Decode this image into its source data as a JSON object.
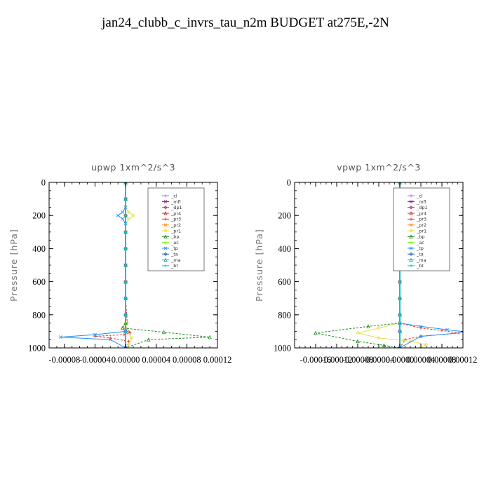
{
  "title": "jan24_clubb_c_invrs_tau_n2m  BUDGET at275E,-2N",
  "chart_data": [
    {
      "type": "line",
      "title": "upwp   1xm^2/s^3",
      "ylabel": "Pressure [hPa]",
      "xlim": [
        -0.0001,
        0.00012
      ],
      "ylim": [
        1000,
        0
      ],
      "xticks": [
        -8e-05,
        -4e-05,
        0.0,
        4e-05,
        8e-05,
        0.00012
      ],
      "xtick_labels": [
        "-0.00008",
        "-0.00004",
        "0.00000",
        "0.00004",
        "0.00008",
        "0.00012"
      ],
      "yticks": [
        0,
        200,
        400,
        600,
        800,
        1000
      ],
      "ytick_labels": [
        "0",
        "200",
        "400",
        "600",
        "800",
        "1000"
      ],
      "legend_position": "top-right",
      "series": [
        {
          "name": "_cl",
          "color": "#9370db",
          "x": [
            0,
            0,
            0,
            0,
            0,
            0,
            0,
            0,
            0,
            0,
            0
          ],
          "y": [
            0,
            100,
            200,
            300,
            400,
            500,
            600,
            700,
            800,
            900,
            1000
          ]
        },
        {
          "name": "_mfl",
          "color": "#8b1a8b",
          "x": [
            0,
            0,
            0,
            0,
            0,
            0,
            0,
            0,
            0,
            0,
            0
          ],
          "y": [
            0,
            100,
            200,
            300,
            400,
            500,
            600,
            700,
            800,
            900,
            1000
          ]
        },
        {
          "name": "_dp1",
          "color": "#b03060",
          "x": [
            0,
            0,
            0,
            0,
            0,
            0,
            0,
            0,
            0,
            0,
            0
          ],
          "y": [
            0,
            100,
            200,
            300,
            400,
            500,
            600,
            700,
            800,
            900,
            1000
          ]
        },
        {
          "name": "_pr4",
          "color": "#cd3333",
          "x": [
            0,
            0,
            0,
            0,
            0,
            0,
            0,
            0,
            0,
            0,
            0
          ],
          "y": [
            0,
            100,
            200,
            300,
            400,
            500,
            600,
            700,
            800,
            900,
            1000
          ]
        },
        {
          "name": "_pr3",
          "color": "#e03030",
          "x": [
            0,
            0,
            0,
            2e-06,
            0,
            4e-06,
            6e-06,
            -2e-06,
            -4e-05,
            -2e-05,
            4e-06,
            2e-06
          ],
          "y": [
            0,
            200,
            700,
            850,
            880,
            900,
            910,
            920,
            930,
            940,
            960,
            1000
          ]
        },
        {
          "name": "_pr2",
          "color": "#ff8c1a",
          "x": [
            0,
            0,
            0,
            0,
            0,
            0,
            0,
            0,
            0,
            0,
            0
          ],
          "y": [
            0,
            100,
            200,
            300,
            400,
            500,
            600,
            700,
            800,
            900,
            1000
          ]
        },
        {
          "name": "_pr1",
          "color": "#e8e040",
          "x": [
            0,
            0,
            4e-06,
            1e-05,
            4e-06,
            0,
            0,
            0,
            -4e-06,
            2e-06,
            8e-06,
            4e-06,
            2e-06
          ],
          "y": [
            0,
            150,
            180,
            200,
            220,
            250,
            700,
            850,
            880,
            900,
            940,
            980,
            1000
          ]
        },
        {
          "name": "_bp",
          "color": "#228b22",
          "x": [
            0,
            0,
            0,
            -4e-06,
            5e-05,
            0.00011,
            3e-05,
            0
          ],
          "y": [
            0,
            600,
            850,
            880,
            905,
            935,
            950,
            1000
          ]
        },
        {
          "name": "_ac",
          "color": "#7cfc00",
          "x": [
            0,
            0,
            0,
            0,
            0,
            0,
            0,
            0,
            0,
            0,
            0
          ],
          "y": [
            0,
            100,
            200,
            300,
            400,
            500,
            600,
            700,
            800,
            900,
            1000
          ]
        },
        {
          "name": "_tp",
          "color": "#1e90ff",
          "x": [
            0,
            0,
            -4e-06,
            -1e-05,
            -4e-06,
            0,
            0,
            0,
            -4e-05,
            -8.5e-05,
            -2e-05,
            0
          ],
          "y": [
            0,
            150,
            180,
            200,
            220,
            250,
            700,
            900,
            920,
            935,
            950,
            1000
          ]
        },
        {
          "name": "_ta",
          "color": "#1e5cc8",
          "x": [
            0,
            0,
            0,
            0,
            0,
            0,
            0,
            0,
            0,
            0,
            0
          ],
          "y": [
            0,
            100,
            200,
            300,
            400,
            500,
            600,
            700,
            800,
            900,
            1000
          ]
        },
        {
          "name": "_ma",
          "color": "#20b2aa",
          "x": [
            0,
            0,
            0,
            0,
            0,
            0,
            0,
            0,
            0,
            0,
            0
          ],
          "y": [
            0,
            100,
            200,
            300,
            400,
            500,
            600,
            700,
            800,
            900,
            1000
          ]
        },
        {
          "name": "_bt",
          "color": "#00ced1",
          "x": [
            0,
            0,
            0,
            0,
            0,
            0,
            0,
            0,
            0,
            0,
            0
          ],
          "y": [
            0,
            100,
            200,
            300,
            400,
            500,
            600,
            700,
            800,
            900,
            1000
          ]
        }
      ]
    },
    {
      "type": "line",
      "title": "vpwp   1xm^2/s^3",
      "ylabel": "Pressure [hPa]",
      "xlim": [
        -0.0002,
        0.00012
      ],
      "ylim": [
        1000,
        0
      ],
      "xticks": [
        -0.00016,
        -0.00012,
        -8e-05,
        -4e-05,
        0.0,
        4e-05,
        8e-05,
        0.00012
      ],
      "xtick_labels": [
        "-0.00016",
        "-0.00012",
        "-0.00008",
        "-0.00004",
        "0.00000",
        "0.00004",
        "0.00008",
        "0.00012"
      ],
      "yticks": [
        0,
        200,
        400,
        600,
        800,
        1000
      ],
      "ytick_labels": [
        "0",
        "200",
        "400",
        "600",
        "800",
        "1000"
      ],
      "legend_position": "top-right",
      "series": [
        {
          "name": "_cl",
          "color": "#9370db",
          "x": [
            0,
            0,
            0,
            0,
            0,
            0,
            0,
            0,
            0,
            0,
            0
          ],
          "y": [
            0,
            100,
            200,
            300,
            400,
            500,
            600,
            700,
            800,
            900,
            1000
          ]
        },
        {
          "name": "_mfl",
          "color": "#8b1a8b",
          "x": [
            0,
            0,
            0,
            0,
            0,
            0,
            0,
            0,
            0,
            0,
            0
          ],
          "y": [
            0,
            100,
            200,
            300,
            400,
            500,
            600,
            700,
            800,
            900,
            1000
          ]
        },
        {
          "name": "_dp1",
          "color": "#b03060",
          "x": [
            0,
            0,
            0,
            0,
            0,
            0,
            0,
            0,
            0,
            0,
            0
          ],
          "y": [
            0,
            100,
            200,
            300,
            400,
            500,
            600,
            700,
            800,
            900,
            1000
          ]
        },
        {
          "name": "_pr4",
          "color": "#cd3333",
          "x": [
            0,
            0,
            0,
            0,
            0,
            0,
            0,
            0,
            0,
            0,
            0
          ],
          "y": [
            0,
            100,
            200,
            300,
            400,
            500,
            600,
            700,
            800,
            900,
            1000
          ]
        },
        {
          "name": "_pr3",
          "color": "#e03030",
          "x": [
            0,
            0,
            4e-05,
            8e-05,
            0.000112,
            4e-05,
            1e-05,
            0
          ],
          "y": [
            0,
            850,
            880,
            895,
            910,
            930,
            950,
            1000
          ]
        },
        {
          "name": "_pr2",
          "color": "#ff8c1a",
          "x": [
            0,
            0,
            0,
            0,
            0,
            0,
            0,
            0,
            0,
            0,
            0
          ],
          "y": [
            0,
            100,
            200,
            300,
            400,
            500,
            600,
            700,
            800,
            900,
            1000
          ]
        },
        {
          "name": "_pr1",
          "color": "#e8e040",
          "x": [
            0,
            0,
            4e-06,
            4e-06,
            0,
            0,
            -4e-05,
            -8e-05,
            -4e-05,
            2e-05,
            5e-05,
            4e-05
          ],
          "y": [
            0,
            150,
            180,
            280,
            320,
            850,
            880,
            910,
            940,
            960,
            980,
            1000
          ]
        },
        {
          "name": "_bp",
          "color": "#228b22",
          "x": [
            0,
            0,
            -6e-05,
            -0.00016,
            -8e-05,
            -3e-05,
            0
          ],
          "y": [
            0,
            850,
            870,
            910,
            960,
            985,
            1000
          ]
        },
        {
          "name": "_ac",
          "color": "#7cfc00",
          "x": [
            0,
            0,
            0,
            0,
            0,
            0,
            0,
            0,
            0,
            0,
            0
          ],
          "y": [
            0,
            100,
            200,
            300,
            400,
            500,
            600,
            700,
            800,
            900,
            1000
          ]
        },
        {
          "name": "_tp",
          "color": "#1e90ff",
          "x": [
            0,
            0,
            -4e-06,
            -4e-06,
            0,
            0,
            4e-05,
            9e-05,
            0.00013,
            4e-05,
            0
          ],
          "y": [
            0,
            150,
            180,
            280,
            320,
            850,
            870,
            890,
            905,
            930,
            1000
          ]
        },
        {
          "name": "_ta",
          "color": "#1e5cc8",
          "x": [
            0,
            0,
            0,
            0,
            0,
            0,
            0,
            0,
            0,
            0,
            0
          ],
          "y": [
            0,
            100,
            200,
            300,
            400,
            500,
            600,
            700,
            800,
            900,
            1000
          ]
        },
        {
          "name": "_ma",
          "color": "#20b2aa",
          "x": [
            0,
            0,
            0,
            0,
            0,
            0,
            0,
            0,
            0,
            0,
            0
          ],
          "y": [
            0,
            100,
            200,
            300,
            400,
            500,
            600,
            700,
            800,
            900,
            1000
          ]
        },
        {
          "name": "_bt",
          "color": "#00ced1",
          "x": [
            0,
            0,
            0,
            0,
            0,
            0,
            0,
            0,
            0,
            0,
            0
          ],
          "y": [
            0,
            100,
            200,
            300,
            400,
            500,
            600,
            700,
            800,
            900,
            1000
          ]
        }
      ]
    }
  ]
}
